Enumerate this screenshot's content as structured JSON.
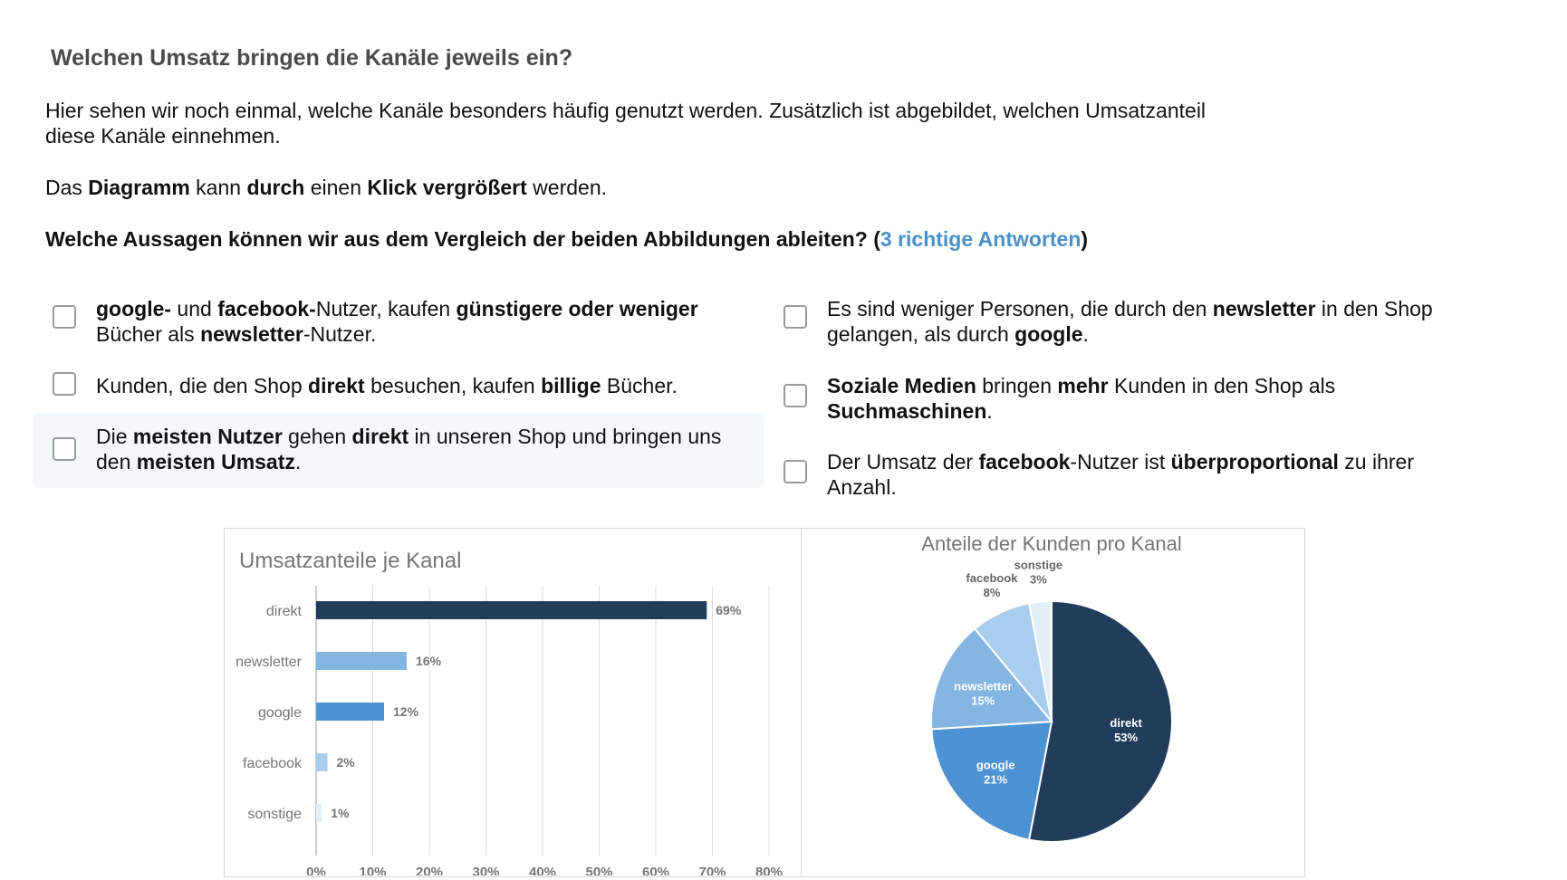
{
  "page": {
    "title": "Welchen Umsatz bringen die Kanäle jeweils ein?",
    "intro": "Hier sehen wir noch einmal, welche Kanäle besonders häufig genutzt werden. Zusätzlich ist abgebildet, welchen Umsatzanteil diese Kanäle einnehmen.",
    "hint": [
      {
        "t": "Das ",
        "b": false
      },
      {
        "t": "Diagramm",
        "b": true
      },
      {
        "t": " kann ",
        "b": false
      },
      {
        "t": "durch",
        "b": true
      },
      {
        "t": " einen ",
        "b": false
      },
      {
        "t": "Klick vergrößert",
        "b": true
      },
      {
        "t": " werden.",
        "b": false
      }
    ],
    "question": "Welche Aussagen können wir aus dem Vergleich der beiden Abbildungen ableiten? (",
    "question_accent": "3 richtige Antworten",
    "question_end": ")"
  },
  "options": [
    {
      "checked": false,
      "segments": [
        {
          "t": "google-",
          "b": true
        },
        {
          "t": " und ",
          "b": false
        },
        {
          "t": "facebook-",
          "b": true
        },
        {
          "t": "Nutzer, kaufen ",
          "b": false
        },
        {
          "t": "günstigere oder weniger",
          "b": true
        },
        {
          "t": " Bücher als ",
          "b": false
        },
        {
          "t": "newsletter",
          "b": true
        },
        {
          "t": "-Nutzer.",
          "b": false
        }
      ]
    },
    {
      "checked": false,
      "segments": [
        {
          "t": "Kunden, die den Shop ",
          "b": false
        },
        {
          "t": "direkt",
          "b": true
        },
        {
          "t": " besuchen, kaufen ",
          "b": false
        },
        {
          "t": "billige",
          "b": true
        },
        {
          "t": " Bücher.",
          "b": false
        }
      ]
    },
    {
      "checked": false,
      "segments": [
        {
          "t": "Die ",
          "b": false
        },
        {
          "t": "meisten Nutzer",
          "b": true
        },
        {
          "t": " gehen ",
          "b": false
        },
        {
          "t": "direkt",
          "b": true
        },
        {
          "t": " in unseren Shop und bringen uns den ",
          "b": false
        },
        {
          "t": "meisten Umsatz",
          "b": true
        },
        {
          "t": ".",
          "b": false
        }
      ]
    },
    {
      "checked": false,
      "segments": [
        {
          "t": "Es sind weniger Personen, die durch den ",
          "b": false
        },
        {
          "t": "newsletter",
          "b": true
        },
        {
          "t": " in den Shop gelangen, als durch ",
          "b": false
        },
        {
          "t": "google",
          "b": true
        },
        {
          "t": ".",
          "b": false
        }
      ]
    },
    {
      "checked": false,
      "segments": [
        {
          "t": "Soziale Medien",
          "b": true
        },
        {
          "t": " bringen ",
          "b": false
        },
        {
          "t": "mehr",
          "b": true
        },
        {
          "t": " Kunden in den Shop als ",
          "b": false
        },
        {
          "t": "Suchmaschinen",
          "b": true
        },
        {
          "t": ".",
          "b": false
        }
      ]
    },
    {
      "checked": false,
      "segments": [
        {
          "t": "Der Umsatz der ",
          "b": false
        },
        {
          "t": "facebook",
          "b": true
        },
        {
          "t": "-Nutzer ist ",
          "b": false
        },
        {
          "t": "überproportional",
          "b": true
        },
        {
          "t": " zu ihrer Anzahl.",
          "b": false
        }
      ]
    }
  ],
  "chart_data": [
    {
      "type": "bar",
      "orientation": "horizontal",
      "title": "Umsatzanteile je Kanal",
      "categories": [
        "direkt",
        "newsletter",
        "google",
        "facebook",
        "sonstige"
      ],
      "values": [
        69,
        16,
        12,
        2,
        1
      ],
      "value_labels": [
        "69%",
        "16%",
        "12%",
        "2%",
        "1%"
      ],
      "colors": [
        "#223d5c",
        "#85b6e2",
        "#4d93d3",
        "#a9cdec",
        "#e3eff8"
      ],
      "xlim": [
        0,
        80
      ],
      "xticks": [
        "0%",
        "10%",
        "20%",
        "30%",
        "40%",
        "50%",
        "60%",
        "70%",
        "80%"
      ],
      "grid": true
    },
    {
      "type": "pie",
      "title": "Anteile der Kunden pro Kanal",
      "slices": [
        {
          "label": "direkt",
          "value": 53,
          "display": "53%",
          "color": "#223d5c",
          "text_color": "#ffffff"
        },
        {
          "label": "google",
          "value": 21,
          "display": "21%",
          "color": "#4d93d3",
          "text_color": "#ffffff"
        },
        {
          "label": "newsletter",
          "value": 15,
          "display": "15%",
          "color": "#85b6e2",
          "text_color": "#ffffff"
        },
        {
          "label": "facebook",
          "value": 8,
          "display": "8%",
          "color": "#a9cdec",
          "text_color": "#666666"
        },
        {
          "label": "sonstige",
          "value": 3,
          "display": "3%",
          "color": "#e3eff8",
          "text_color": "#666666"
        }
      ]
    }
  ]
}
